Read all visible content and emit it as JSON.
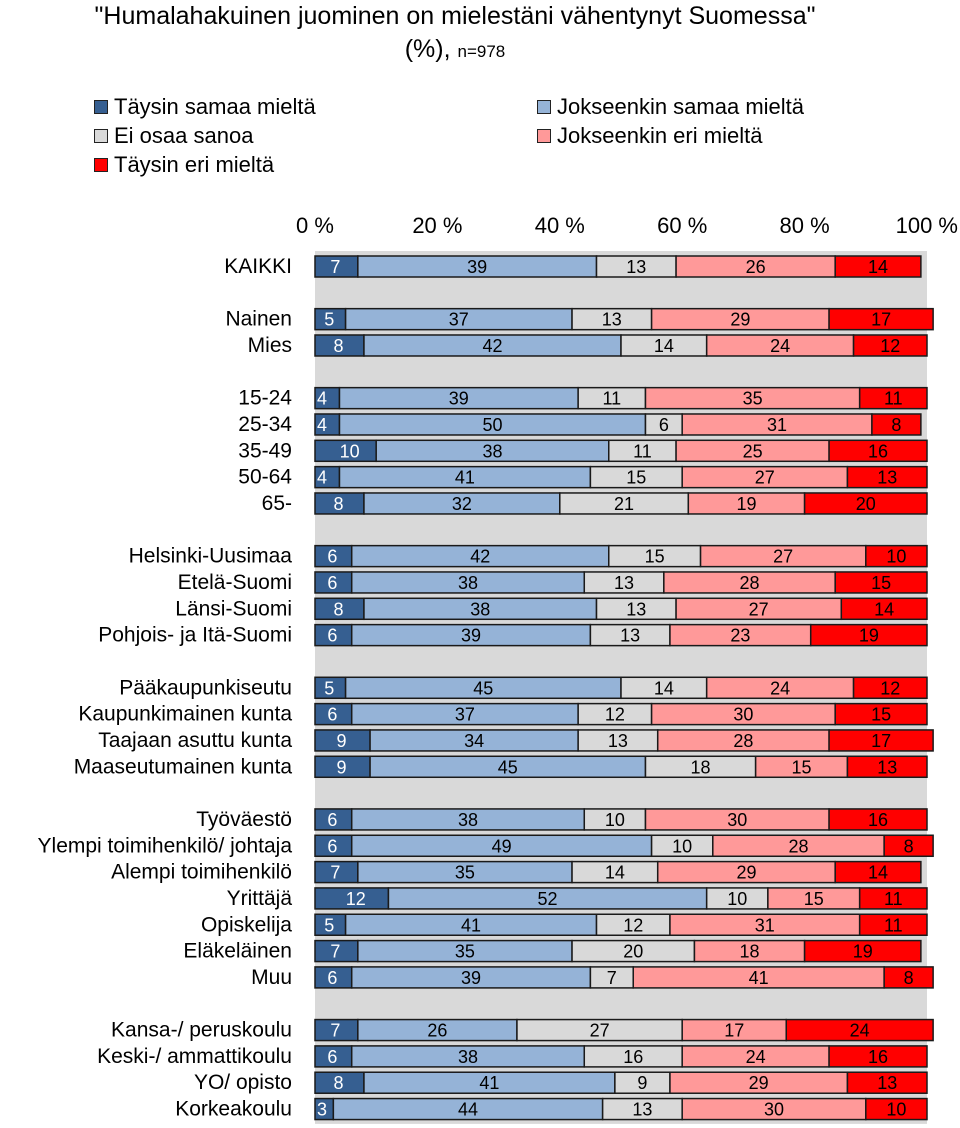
{
  "title": {
    "main_line1": "\"Humalahakuinen juominen on mielestäni vähentynyt Suomessa\"",
    "main_line2": "(%),",
    "n": "n=978"
  },
  "colors": {
    "Täysin samaa mieltä": "#365f91",
    "Jokseenkin samaa mieltä": "#95b3d7",
    "Ei osaa sanoa": "#d9d9d9",
    "Jokseenkin eri mieltä": "#ff9999",
    "Täysin eri mieltä": "#ff0000"
  },
  "chart_data": {
    "type": "bar",
    "orientation": "horizontal-stacked-100",
    "xlim": [
      0,
      100
    ],
    "x_ticks": [
      "0 %",
      "20 %",
      "40 %",
      "60 %",
      "80 %",
      "100 %"
    ],
    "legend_placement": "top",
    "legend_order": [
      "Täysin samaa mieltä",
      "Jokseenkin samaa mieltä",
      "Ei osaa sanoa",
      "Jokseenkin eri mieltä",
      "Täysin eri mieltä"
    ],
    "series_names": [
      "Täysin samaa mieltä",
      "Jokseenkin samaa mieltä",
      "Ei osaa sanoa",
      "Jokseenkin eri mieltä",
      "Täysin eri mieltä"
    ],
    "groups": [
      {
        "rows": [
          {
            "label": "KAIKKI",
            "values": [
              7,
              39,
              13,
              26,
              14
            ]
          }
        ]
      },
      {
        "rows": [
          {
            "label": "Nainen",
            "values": [
              5,
              37,
              13,
              29,
              17
            ]
          },
          {
            "label": "Mies",
            "values": [
              8,
              42,
              14,
              24,
              12
            ]
          }
        ]
      },
      {
        "rows": [
          {
            "label": "15-24",
            "values": [
              4,
              39,
              11,
              35,
              11
            ]
          },
          {
            "label": "25-34",
            "values": [
              4,
              50,
              6,
              31,
              8
            ]
          },
          {
            "label": "35-49",
            "values": [
              10,
              38,
              11,
              25,
              16
            ]
          },
          {
            "label": "50-64",
            "values": [
              4,
              41,
              15,
              27,
              13
            ]
          },
          {
            "label": "65-",
            "values": [
              8,
              32,
              21,
              19,
              20
            ]
          }
        ]
      },
      {
        "rows": [
          {
            "label": "Helsinki-Uusimaa",
            "values": [
              6,
              42,
              15,
              27,
              10
            ]
          },
          {
            "label": "Etelä-Suomi",
            "values": [
              6,
              38,
              13,
              28,
              15
            ]
          },
          {
            "label": "Länsi-Suomi",
            "values": [
              8,
              38,
              13,
              27,
              14
            ]
          },
          {
            "label": "Pohjois- ja Itä-Suomi",
            "values": [
              6,
              39,
              13,
              23,
              19
            ]
          }
        ]
      },
      {
        "rows": [
          {
            "label": "Pääkaupunkiseutu",
            "values": [
              5,
              45,
              14,
              24,
              12
            ]
          },
          {
            "label": "Kaupunkimainen kunta",
            "values": [
              6,
              37,
              12,
              30,
              15
            ]
          },
          {
            "label": "Taajaan asuttu kunta",
            "values": [
              9,
              34,
              13,
              28,
              17
            ]
          },
          {
            "label": "Maaseutumainen kunta",
            "values": [
              9,
              45,
              18,
              15,
              13
            ]
          }
        ]
      },
      {
        "rows": [
          {
            "label": "Työväestö",
            "values": [
              6,
              38,
              10,
              30,
              16
            ]
          },
          {
            "label": "Ylempi toimihenkilö/ johtaja",
            "values": [
              6,
              49,
              10,
              28,
              8
            ]
          },
          {
            "label": "Alempi toimihenkilö",
            "values": [
              7,
              35,
              14,
              29,
              14
            ]
          },
          {
            "label": "Yrittäjä",
            "values": [
              12,
              52,
              10,
              15,
              11
            ]
          },
          {
            "label": "Opiskelija",
            "values": [
              5,
              41,
              12,
              31,
              11
            ]
          },
          {
            "label": "Eläkeläinen",
            "values": [
              7,
              35,
              20,
              18,
              19
            ]
          },
          {
            "label": "Muu",
            "values": [
              6,
              39,
              7,
              41,
              8
            ]
          }
        ]
      },
      {
        "rows": [
          {
            "label": "Kansa-/ peruskoulu",
            "values": [
              7,
              26,
              27,
              17,
              24
            ]
          },
          {
            "label": "Keski-/ ammattikoulu",
            "values": [
              6,
              38,
              16,
              24,
              16
            ]
          },
          {
            "label": "YO/ opisto",
            "values": [
              8,
              41,
              9,
              29,
              13
            ]
          },
          {
            "label": "Korkeakoulu",
            "values": [
              3,
              44,
              13,
              30,
              10
            ]
          }
        ]
      }
    ]
  }
}
